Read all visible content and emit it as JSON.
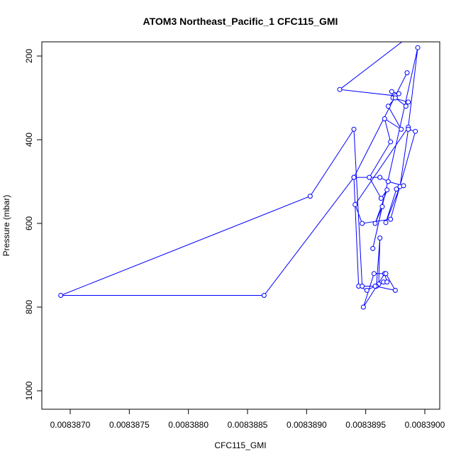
{
  "chart_data": {
    "type": "line",
    "title": "ATOM3 Northeast_Pacific_1 CFC115_GMI",
    "xlabel": "CFC115_GMI",
    "ylabel": "Pressure (mbar)",
    "xlim": [
      0.0083868,
      0.0083901
    ],
    "ylim": [
      1040,
      180
    ],
    "y_reversed": true,
    "grid": false,
    "legend": "none",
    "color": "#0000ff",
    "x_ticks": [
      0.008387,
      0.0083875,
      0.008388,
      0.0083885,
      0.008389,
      0.0083895,
      0.00839
    ],
    "x_tick_labels": [
      "0.0083870",
      "0.0083875",
      "0.0083880",
      "0.0083885",
      "0.0083890",
      "0.0083895",
      "0.0083900"
    ],
    "y_ticks": [
      200,
      400,
      600,
      800,
      1000
    ],
    "y_tick_labels": [
      "200",
      "400",
      "600",
      "800",
      "1000"
    ],
    "series": [
      {
        "x": [
          0.00838995,
          0.00838928,
          0.00838975,
          0.00838978,
          0.00838972,
          0.00838973,
          0.00838986,
          0.00838984,
          0.00838975,
          0.00838969,
          0.0083898,
          0.00838966,
          0.00838971,
          0.00838953,
          0.00838963,
          0.00838968,
          0.00838958,
          0.00838964,
          0.00838956,
          0.00838994,
          0.00838986,
          0.00838941,
          0.00838947,
          0.00838971,
          0.00838992,
          0.00838986,
          0.00838979,
          0.00838967,
          0.00838976,
          0.00838982,
          0.00838969,
          0.00838962,
          0.0083894,
          0.00838944,
          0.00838951,
          0.00838961,
          0.00838962,
          0.00838959,
          0.00838965,
          0.00838968,
          0.00838966,
          0.00838948,
          0.00838957,
          0.00838967,
          0.00838975,
          0.00838958,
          0.00838947,
          0.0083894,
          0.00838903,
          0.00838692,
          0.00838864,
          0.0083894,
          0.00838985
        ]
      },
      {
        "y": [
          135,
          280,
          295,
          290,
          285,
          300,
          310,
          320,
          300,
          320,
          375,
          350,
          405,
          490,
          540,
          520,
          600,
          560,
          660,
          180,
          370,
          555,
          600,
          590,
          380,
          375,
          512,
          598,
          518,
          510,
          500,
          490,
          490,
          750,
          760,
          745,
          635,
          750,
          740,
          740,
          720,
          800,
          720,
          720,
          760,
          750,
          750,
          375,
          535,
          772,
          772,
          490,
          240
        ]
      }
    ]
  }
}
